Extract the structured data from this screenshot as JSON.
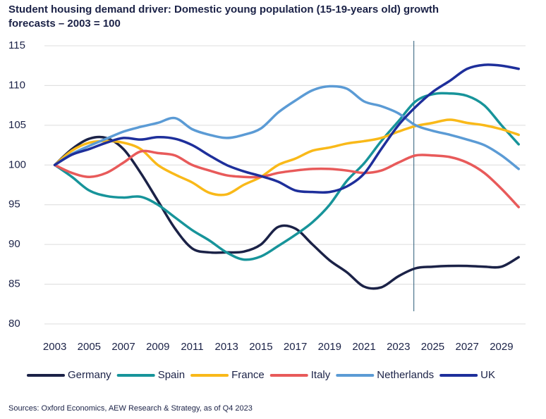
{
  "chart_data": {
    "type": "line",
    "title_lines": [
      "Student housing demand driver: Domestic young population (15-19-years old) growth",
      "forecasts – 2003 = 100"
    ],
    "source": "Sources: Oxford Economics, AEW Research & Strategy, as of Q4 2023",
    "x": [
      2003,
      2004,
      2005,
      2006,
      2007,
      2008,
      2009,
      2010,
      2011,
      2012,
      2013,
      2014,
      2015,
      2016,
      2017,
      2018,
      2019,
      2020,
      2021,
      2022,
      2023,
      2024,
      2025,
      2026,
      2027,
      2028,
      2029,
      2030
    ],
    "xlim": [
      2002.4,
      2030.4
    ],
    "xticks": [
      2003,
      2005,
      2007,
      2009,
      2011,
      2013,
      2015,
      2017,
      2019,
      2021,
      2023,
      2025,
      2027,
      2029
    ],
    "ylim": [
      80,
      115
    ],
    "yticks": [
      80,
      85,
      90,
      95,
      100,
      105,
      110,
      115
    ],
    "grid": true,
    "vline": 2023.9,
    "legend": "bottom",
    "series": [
      {
        "name": "Germany",
        "color": "#1b2247",
        "values": [
          100,
          102,
          103.3,
          103.4,
          102,
          99,
          95.5,
          92,
          89.5,
          89,
          89,
          89.1,
          90,
          92.2,
          92,
          90,
          88,
          86.5,
          84.7,
          84.6,
          86,
          87,
          87.2,
          87.3,
          87.3,
          87.2,
          87.2,
          88.4
        ]
      },
      {
        "name": "Spain",
        "color": "#17949a",
        "values": [
          100,
          98.5,
          96.8,
          96.1,
          95.9,
          96,
          95,
          93.4,
          91.8,
          90.5,
          89,
          88.1,
          88.5,
          89.8,
          91.2,
          92.8,
          95,
          98,
          100.2,
          103,
          105.5,
          108,
          108.9,
          109,
          108.7,
          107.5,
          105,
          102.6
        ]
      },
      {
        "name": "France",
        "color": "#f9b919",
        "values": [
          100,
          101.8,
          102.8,
          103,
          102.8,
          102,
          100,
          98.8,
          97.8,
          96.5,
          96.3,
          97.5,
          98.5,
          100,
          100.8,
          101.8,
          102.2,
          102.7,
          103,
          103.4,
          104.2,
          104.9,
          105.3,
          105.7,
          105.3,
          105,
          104.5,
          103.8
        ]
      },
      {
        "name": "Italy",
        "color": "#e85a5a",
        "values": [
          100,
          99,
          98.5,
          99,
          100.3,
          101.7,
          101.5,
          101.2,
          100,
          99.3,
          98.7,
          98.5,
          98.5,
          99,
          99.3,
          99.5,
          99.5,
          99.3,
          99,
          99.3,
          100.3,
          101.2,
          101.2,
          101,
          100.3,
          99,
          97,
          94.7
        ]
      },
      {
        "name": "Netherlands",
        "color": "#5b9bd5",
        "values": [
          100,
          101.4,
          102.4,
          103.3,
          104.2,
          104.8,
          105.3,
          105.9,
          104.5,
          103.8,
          103.4,
          103.8,
          104.6,
          106.6,
          108.1,
          109.4,
          109.9,
          109.6,
          108,
          107.4,
          106.5,
          105,
          104.3,
          103.8,
          103.2,
          102.5,
          101.2,
          99.5
        ]
      },
      {
        "name": "UK",
        "color": "#1e2f9b",
        "values": [
          100,
          101.3,
          102,
          102.8,
          103.4,
          103.2,
          103.5,
          103.3,
          102.5,
          101.2,
          100,
          99.2,
          98.6,
          97.9,
          96.8,
          96.6,
          96.6,
          97.3,
          98.9,
          102,
          105,
          107.3,
          109.2,
          110.6,
          112.1,
          112.6,
          112.5,
          112.1
        ]
      }
    ]
  }
}
